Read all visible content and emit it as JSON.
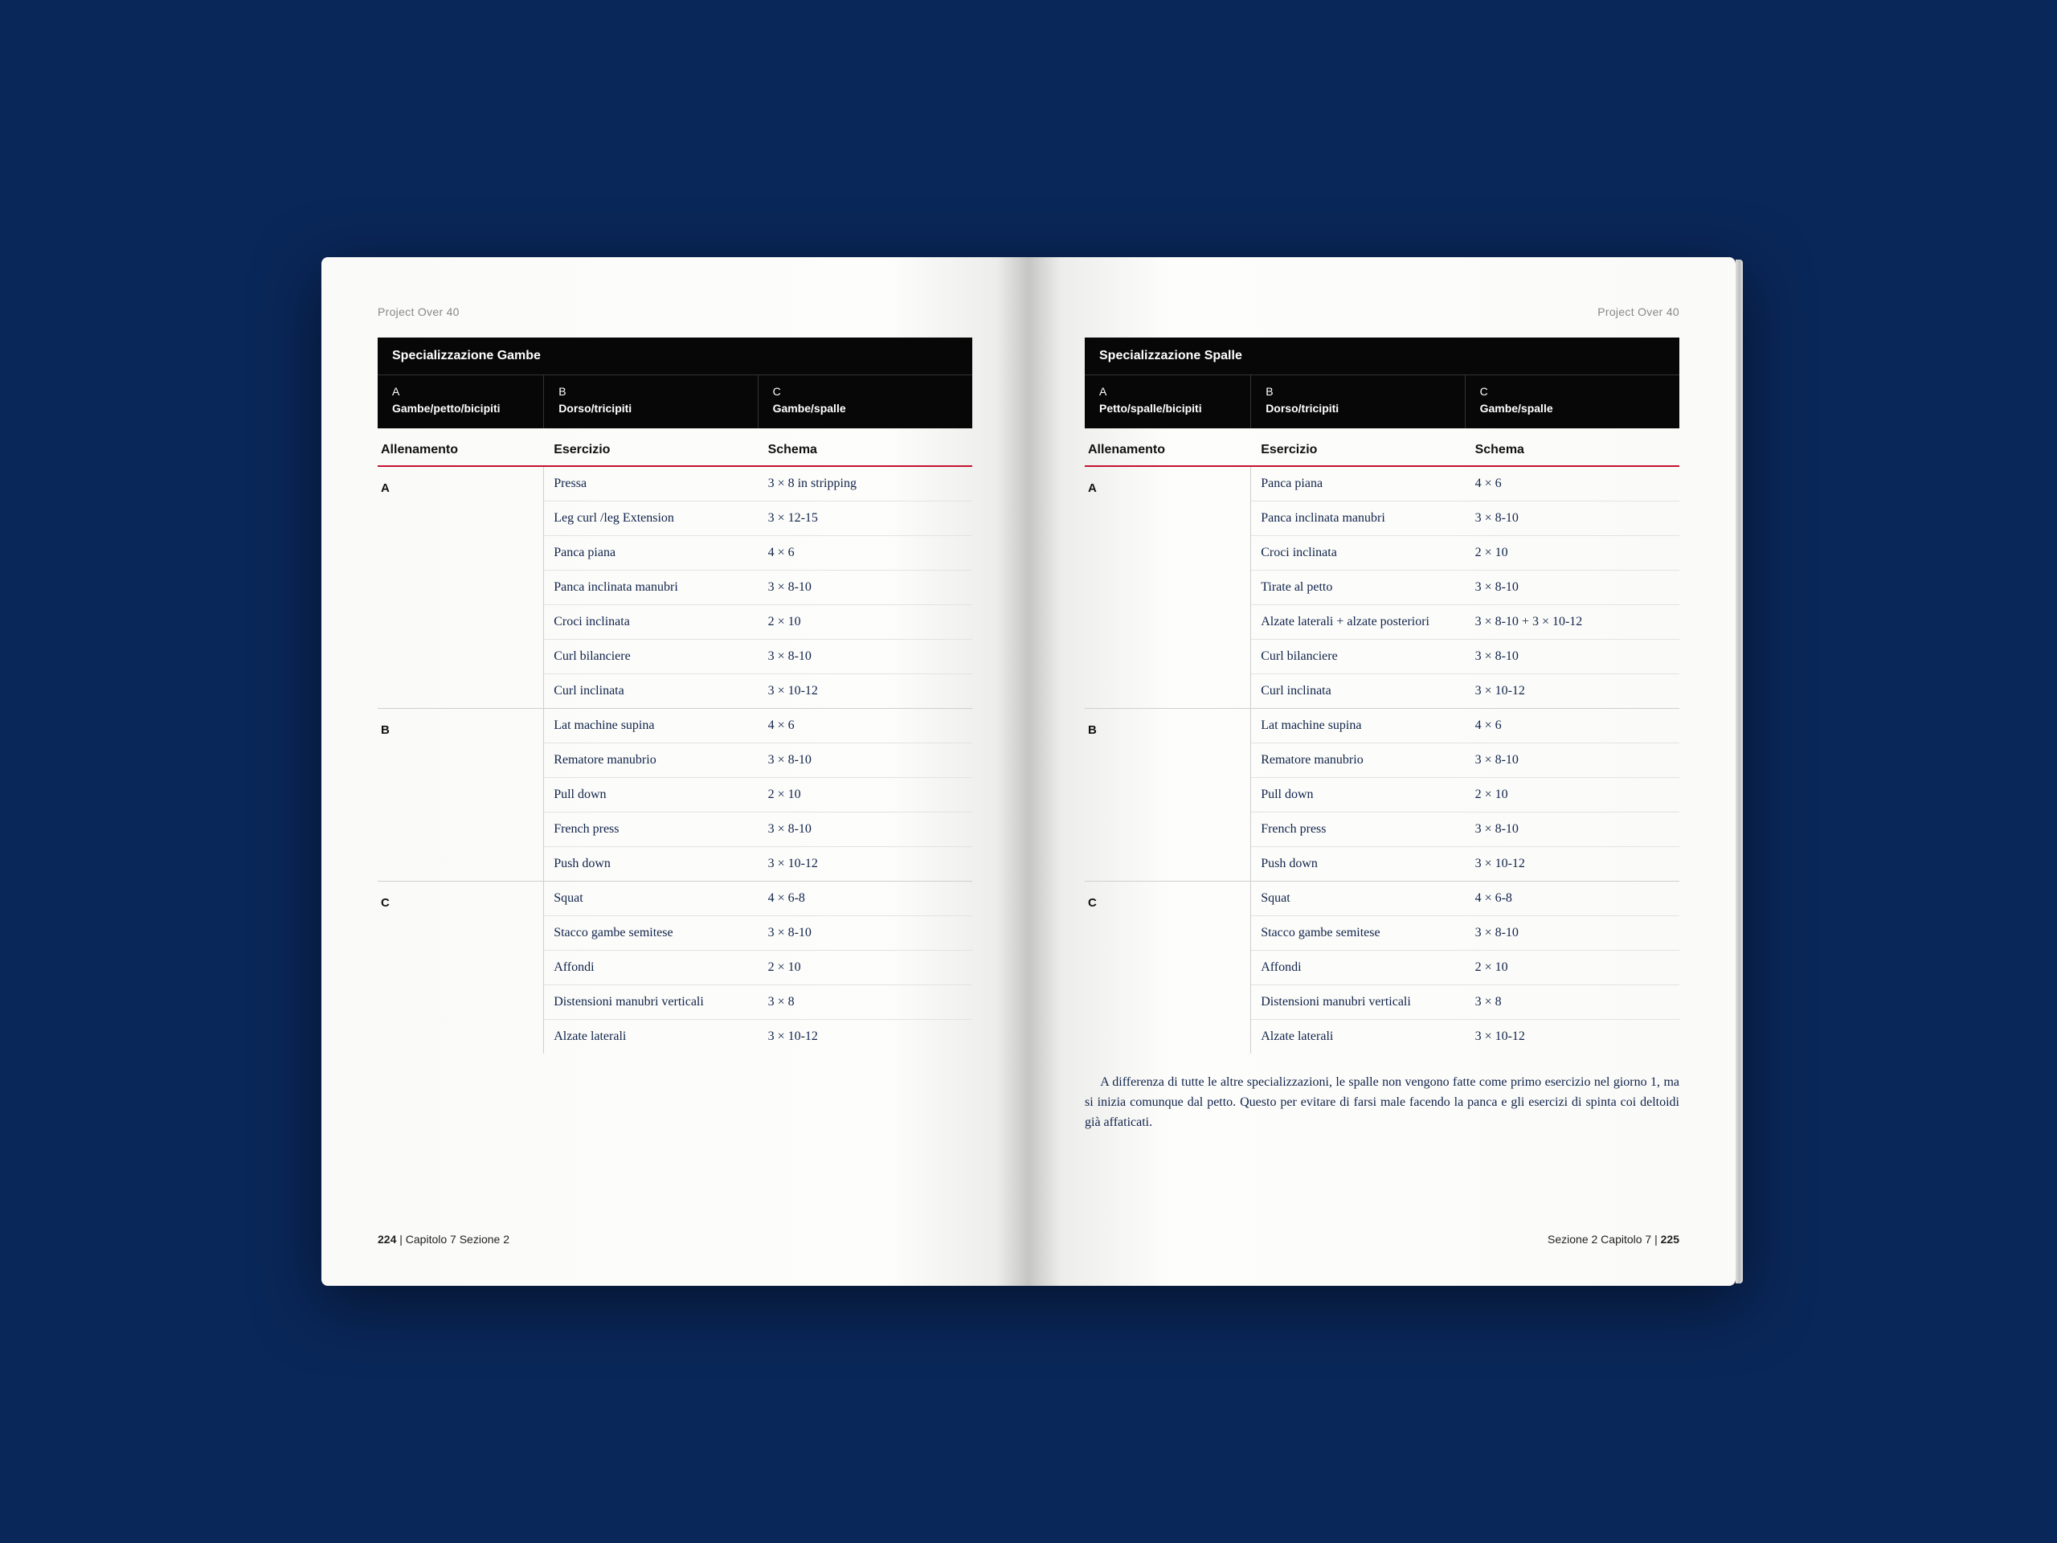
{
  "colors": {
    "background": "#0a2759",
    "page": "#fafaf8",
    "black": "#070707",
    "rule": "#c41230",
    "text": "#10234a",
    "border": "#cfcfcf",
    "running_head": "#888888"
  },
  "running_head": "Project Over 40",
  "left": {
    "section_title": "Specializzazione Gambe",
    "header_cols": [
      {
        "letter": "A",
        "desc": "Gambe/petto/bicipiti"
      },
      {
        "letter": "B",
        "desc": "Dorso/tricipiti"
      },
      {
        "letter": "C",
        "desc": "Gambe/spalle"
      }
    ],
    "table_headers": {
      "allenamento": "Allenamento",
      "esercizio": "Esercizio",
      "schema": "Schema"
    },
    "groups": [
      {
        "label": "A",
        "rows": [
          {
            "ex": "Pressa",
            "sc": "3 × 8 in stripping"
          },
          {
            "ex": "Leg curl /leg Extension",
            "sc": "3 × 12-15"
          },
          {
            "ex": "Panca piana",
            "sc": "4 × 6"
          },
          {
            "ex": "Panca inclinata manubri",
            "sc": "3 × 8-10"
          },
          {
            "ex": "Croci inclinata",
            "sc": "2 × 10"
          },
          {
            "ex": "Curl bilanciere",
            "sc": "3 × 8-10"
          },
          {
            "ex": "Curl inclinata",
            "sc": "3 × 10-12"
          }
        ]
      },
      {
        "label": "B",
        "rows": [
          {
            "ex": "Lat machine supina",
            "sc": "4 × 6"
          },
          {
            "ex": "Rematore manubrio",
            "sc": "3 × 8-10"
          },
          {
            "ex": "Pull down",
            "sc": "2 × 10"
          },
          {
            "ex": "French press",
            "sc": "3 × 8-10"
          },
          {
            "ex": "Push down",
            "sc": "3 × 10-12"
          }
        ]
      },
      {
        "label": "C",
        "rows": [
          {
            "ex": "Squat",
            "sc": "4 × 6-8"
          },
          {
            "ex": "Stacco gambe semitese",
            "sc": "3 × 8-10"
          },
          {
            "ex": "Affondi",
            "sc": "2 × 10"
          },
          {
            "ex": "Distensioni manubri verticali",
            "sc": "3 × 8"
          },
          {
            "ex": "Alzate laterali",
            "sc": "3 × 10-12"
          }
        ]
      }
    ],
    "footer": {
      "page_num": "224",
      "text": "Capitolo 7 Sezione 2"
    }
  },
  "right": {
    "section_title": "Specializzazione Spalle",
    "header_cols": [
      {
        "letter": "A",
        "desc": "Petto/spalle/bicipiti"
      },
      {
        "letter": "B",
        "desc": "Dorso/tricipiti"
      },
      {
        "letter": "C",
        "desc": "Gambe/spalle"
      }
    ],
    "table_headers": {
      "allenamento": "Allenamento",
      "esercizio": "Esercizio",
      "schema": "Schema"
    },
    "groups": [
      {
        "label": "A",
        "rows": [
          {
            "ex": "Panca piana",
            "sc": "4 × 6"
          },
          {
            "ex": "Panca inclinata manubri",
            "sc": "3 × 8-10"
          },
          {
            "ex": "Croci inclinata",
            "sc": "2 × 10"
          },
          {
            "ex": "Tirate al petto",
            "sc": "3 × 8-10"
          },
          {
            "ex": "Alzate laterali + alzate posteriori",
            "sc": "3 × 8-10 + 3 × 10-12"
          },
          {
            "ex": "Curl bilanciere",
            "sc": "3 × 8-10"
          },
          {
            "ex": "Curl inclinata",
            "sc": "3 × 10-12"
          }
        ]
      },
      {
        "label": "B",
        "rows": [
          {
            "ex": "Lat machine supina",
            "sc": "4 × 6"
          },
          {
            "ex": "Rematore manubrio",
            "sc": "3 × 8-10"
          },
          {
            "ex": "Pull down",
            "sc": "2 × 10"
          },
          {
            "ex": "French press",
            "sc": "3 × 8-10"
          },
          {
            "ex": "Push down",
            "sc": "3 × 10-12"
          }
        ]
      },
      {
        "label": "C",
        "rows": [
          {
            "ex": "Squat",
            "sc": "4 × 6-8"
          },
          {
            "ex": "Stacco gambe semitese",
            "sc": "3 × 8-10"
          },
          {
            "ex": "Affondi",
            "sc": "2 × 10"
          },
          {
            "ex": "Distensioni manubri verticali",
            "sc": "3 × 8"
          },
          {
            "ex": "Alzate laterali",
            "sc": "3 × 10-12"
          }
        ]
      }
    ],
    "body_text": "A differenza di tutte le altre specializzazioni, le spalle non vengono fatte come primo esercizio nel giorno 1, ma si inizia comunque dal petto. Questo per evitare di farsi male facendo la panca e gli esercizi di spinta coi deltoidi già affaticati.",
    "footer": {
      "text": "Sezione 2 Capitolo 7",
      "page_num": "225"
    }
  }
}
